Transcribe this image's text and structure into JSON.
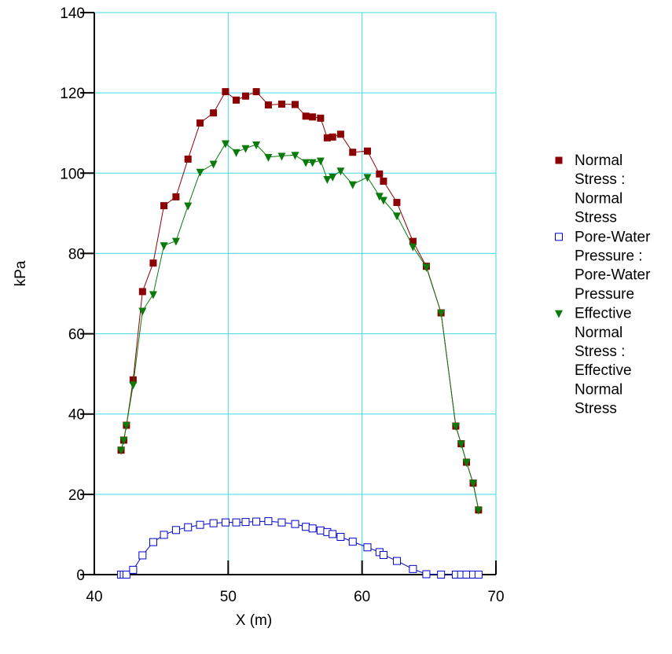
{
  "chart_data": {
    "type": "scatter",
    "xlabel": "X (m)",
    "ylabel": "kPa",
    "xlim": [
      40,
      70
    ],
    "ylim": [
      0,
      140
    ],
    "xticks": [
      40,
      50,
      60,
      70
    ],
    "yticks": [
      0,
      20,
      40,
      60,
      80,
      100,
      120,
      140
    ],
    "grid": true,
    "legend_position": "right",
    "series": [
      {
        "name": "Normal Stress : Normal Stress",
        "legend_lines": [
          "Normal",
          "Stress :",
          "Normal",
          "Stress"
        ],
        "marker": "filled-square",
        "color": "#8b0000",
        "x": [
          42.0,
          42.2,
          42.4,
          42.9,
          43.6,
          44.4,
          45.2,
          46.1,
          47.0,
          47.9,
          48.9,
          49.8,
          50.6,
          51.3,
          52.1,
          53.0,
          54.0,
          55.0,
          55.8,
          56.3,
          56.9,
          57.4,
          57.8,
          58.4,
          59.3,
          60.4,
          61.3,
          61.6,
          62.6,
          63.8,
          64.8,
          65.9,
          67.0,
          67.4,
          67.8,
          68.3,
          68.7
        ],
        "y": [
          31,
          33.5,
          37.2,
          48.5,
          70.5,
          77.6,
          91.9,
          94.1,
          103.5,
          112.5,
          115.0,
          120.3,
          118.2,
          119.2,
          120.3,
          117.0,
          117.2,
          117.1,
          114.2,
          114.0,
          113.7,
          108.8,
          109.0,
          109.7,
          105.2,
          105.5,
          99.8,
          98.0,
          92.7,
          83.0,
          76.8,
          65.2,
          37.0,
          32.6,
          28.0,
          22.8,
          16.1
        ]
      },
      {
        "name": "Pore-Water Pressure : Pore-Water Pressure",
        "legend_lines": [
          "Pore-Water",
          "Pressure :",
          "Pore-Water",
          "Pressure"
        ],
        "marker": "open-square",
        "color": "#0000cc",
        "x": [
          42.0,
          42.2,
          42.4,
          42.9,
          43.6,
          44.4,
          45.2,
          46.1,
          47.0,
          47.9,
          48.9,
          49.8,
          50.6,
          51.3,
          52.1,
          53.0,
          54.0,
          55.0,
          55.8,
          56.3,
          56.9,
          57.4,
          57.8,
          58.4,
          59.3,
          60.4,
          61.3,
          61.6,
          62.6,
          63.8,
          64.8,
          65.9,
          67.0,
          67.4,
          67.8,
          68.3,
          68.7
        ],
        "y": [
          0,
          0,
          0,
          1.2,
          4.8,
          8.1,
          9.9,
          11.1,
          11.8,
          12.4,
          12.8,
          13.0,
          13.0,
          13.1,
          13.2,
          13.3,
          13.0,
          12.6,
          11.9,
          11.5,
          11.0,
          10.6,
          10.1,
          9.4,
          8.2,
          6.8,
          5.6,
          4.9,
          3.4,
          1.4,
          0.1,
          0,
          0,
          0,
          0,
          0,
          0
        ]
      },
      {
        "name": "Effective Normal Stress : Effective Normal Stress",
        "legend_lines": [
          "Effective",
          "Normal",
          "Stress :",
          "Effective",
          "Normal",
          "Stress"
        ],
        "marker": "filled-triangle-down",
        "color": "#0a7a0a",
        "x": [
          42.0,
          42.2,
          42.4,
          42.9,
          43.6,
          44.4,
          45.2,
          46.1,
          47.0,
          47.9,
          48.9,
          49.8,
          50.6,
          51.3,
          52.1,
          53.0,
          54.0,
          55.0,
          55.8,
          56.3,
          56.9,
          57.4,
          57.8,
          58.4,
          59.3,
          60.4,
          61.3,
          61.6,
          62.6,
          63.8,
          64.8,
          65.9,
          67.0,
          67.4,
          67.8,
          68.3,
          68.7
        ],
        "y": [
          31,
          33.5,
          37.2,
          47.3,
          65.7,
          69.8,
          82.0,
          83.1,
          91.9,
          100.3,
          102.3,
          107.4,
          105.2,
          106.2,
          107.1,
          104.0,
          104.3,
          104.5,
          102.7,
          102.7,
          103.1,
          98.5,
          99.1,
          100.6,
          97.2,
          99.0,
          94.3,
          93.3,
          89.4,
          81.7,
          76.6,
          65.2,
          37.0,
          32.6,
          28.0,
          22.8,
          16.1
        ]
      }
    ]
  }
}
